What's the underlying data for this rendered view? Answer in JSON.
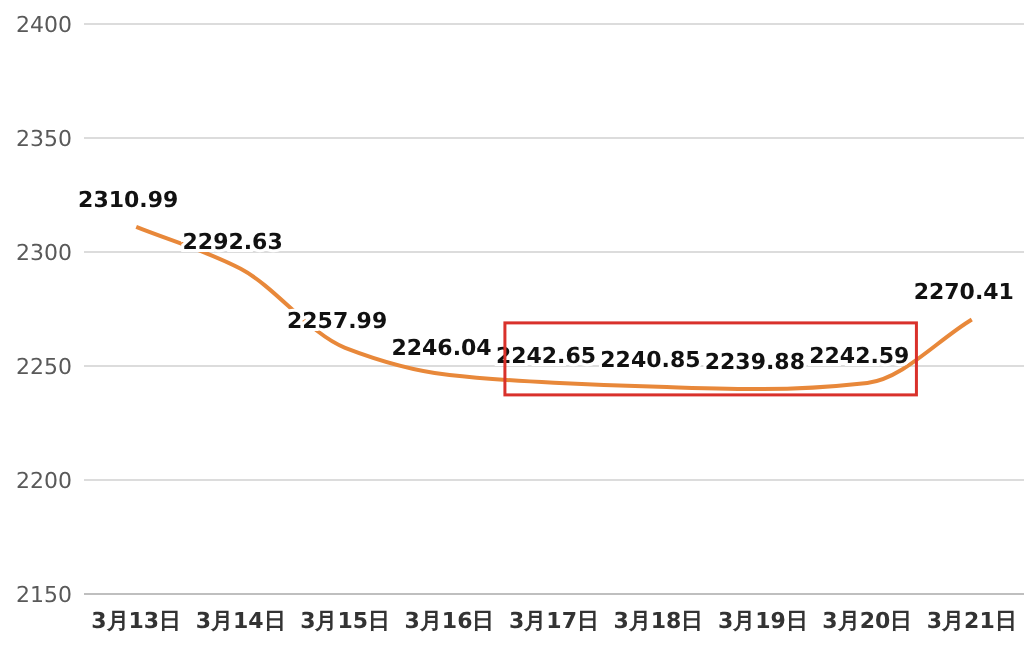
{
  "chart_data": {
    "type": "line",
    "categories": [
      "3月13日",
      "3月14日",
      "3月15日",
      "3月16日",
      "3月17日",
      "3月18日",
      "3月19日",
      "3月20日",
      "3月21日"
    ],
    "series": [
      {
        "color": "#e8883a",
        "values": [
          2310.99,
          2292.63,
          2257.99,
          2246.04,
          2242.65,
          2240.85,
          2239.88,
          2242.59,
          2270.41
        ]
      }
    ],
    "ylim": [
      2150,
      2400
    ],
    "yticks": [
      2150,
      2200,
      2250,
      2300,
      2350,
      2400
    ],
    "grid": "y",
    "data_labels": true,
    "marker": "none",
    "line_style": "solid"
  }
}
